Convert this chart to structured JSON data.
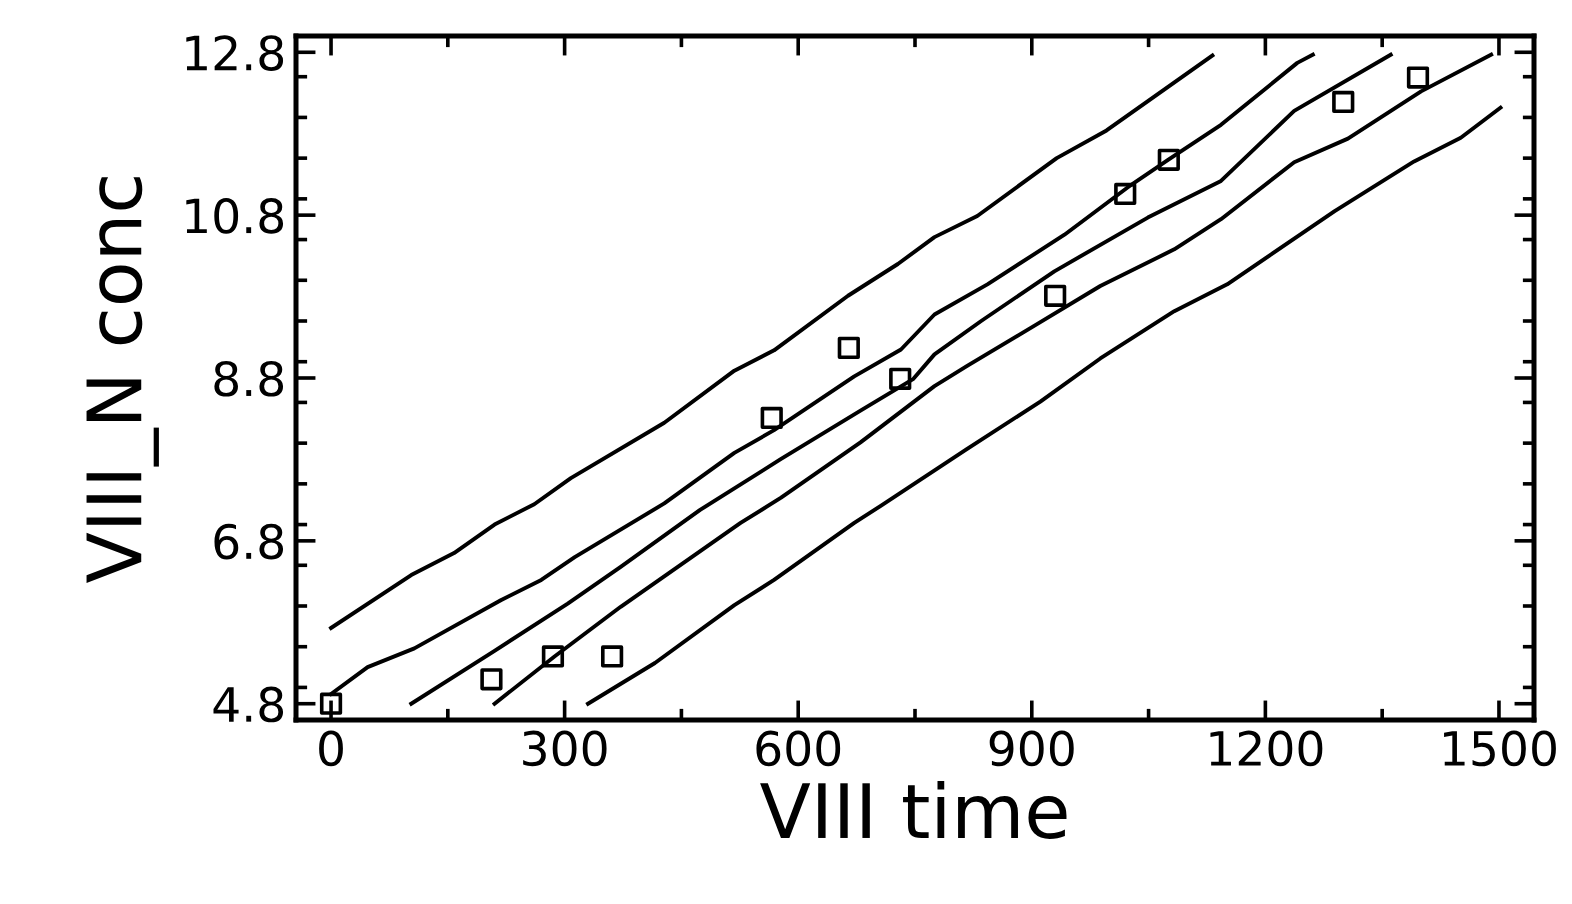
{
  "chart_data": {
    "type": "line",
    "xlabel": "VIII time",
    "ylabel": "VIII_N conc",
    "xlim": [
      -45,
      1545
    ],
    "ylim": [
      4.6,
      13.0
    ],
    "xticks": [
      0,
      300,
      600,
      900,
      1200,
      1500
    ],
    "yticks": [
      {
        "value": 4.8,
        "label": "4.8"
      },
      {
        "value": 6.8,
        "label": "6.8"
      },
      {
        "value": 8.8,
        "label": "8.8"
      },
      {
        "value": 10.8,
        "label": "10.8"
      },
      {
        "value": 12.8,
        "label": "12.8"
      }
    ],
    "grid": false,
    "series": [
      {
        "type": "scatter",
        "marker": "square",
        "color": "#000000",
        "x": [
          0,
          206,
          285,
          361,
          566,
          665,
          731,
          930,
          1020,
          1076,
          1300,
          1396
        ],
        "values": [
          4.8,
          5.1,
          5.38,
          5.38,
          8.31,
          9.17,
          8.79,
          9.81,
          11.06,
          11.48,
          12.19,
          12.49
        ]
      },
      {
        "marker": "none",
        "line_style": "solid",
        "color": "#000000",
        "x": [
          0,
          103,
          158,
          210,
          261,
          308,
          428,
          518,
          569,
          664,
          728,
          775,
          830,
          932,
          996,
          1132
        ],
        "values": [
          5.73,
          6.38,
          6.65,
          7.0,
          7.25,
          7.57,
          8.25,
          8.89,
          9.14,
          9.81,
          10.2,
          10.53,
          10.79,
          11.5,
          11.84,
          12.76
        ]
      },
      {
        "marker": "none",
        "line_style": "solid",
        "color": "#000000",
        "x": [
          0,
          47,
          107,
          218,
          270,
          313,
          428,
          518,
          569,
          672,
          732,
          775,
          843,
          942,
          1023,
          1075,
          1143,
          1241,
          1261
        ],
        "values": [
          4.92,
          5.25,
          5.48,
          6.07,
          6.32,
          6.6,
          7.26,
          7.88,
          8.16,
          8.82,
          9.15,
          9.58,
          9.95,
          10.56,
          11.14,
          11.48,
          11.91,
          12.67,
          12.77
        ]
      },
      {
        "marker": "none",
        "line_style": "solid",
        "color": "#000000",
        "x": [
          103,
          210,
          304,
          372,
          474,
          577,
          680,
          748,
          775,
          835,
          929,
          1049,
          1143,
          1237,
          1361
        ],
        "values": [
          4.8,
          5.45,
          6.03,
          6.48,
          7.18,
          7.8,
          8.4,
          8.79,
          9.09,
          9.5,
          10.11,
          10.77,
          11.22,
          12.08,
          12.77
        ]
      },
      {
        "marker": "none",
        "line_style": "solid",
        "color": "#000000",
        "x": [
          210,
          287,
          372,
          526,
          578,
          680,
          775,
          817,
          903,
          988,
          1083,
          1143,
          1237,
          1306,
          1400,
          1490
        ],
        "values": [
          4.8,
          5.38,
          5.99,
          7.02,
          7.33,
          8.01,
          8.7,
          8.95,
          9.44,
          9.93,
          10.38,
          10.75,
          11.45,
          11.74,
          12.32,
          12.77
        ]
      },
      {
        "marker": "none",
        "line_style": "solid",
        "color": "#000000",
        "x": [
          330,
          416,
          518,
          569,
          672,
          706,
          817,
          911,
          988,
          1083,
          1151,
          1289,
          1391,
          1451,
          1502
        ],
        "values": [
          4.8,
          5.3,
          6.01,
          6.32,
          7.02,
          7.23,
          7.93,
          8.51,
          9.04,
          9.62,
          9.95,
          10.85,
          11.46,
          11.75,
          12.12
        ]
      }
    ]
  }
}
